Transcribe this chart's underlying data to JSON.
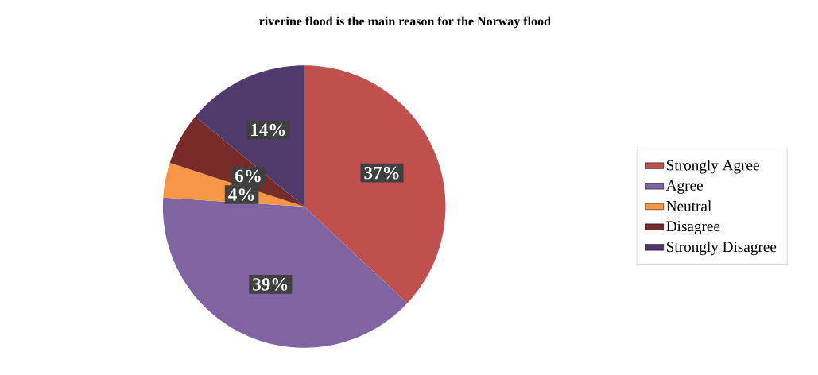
{
  "chart_data": {
    "type": "pie",
    "title": "riverine flood is the main reason for the Norway flood",
    "categories": [
      "Strongly Agree",
      "Agree",
      "Neutral",
      "Disagree",
      "Strongly Disagree"
    ],
    "values": [
      37,
      39,
      4,
      6,
      14
    ],
    "colors": [
      "#c0504d",
      "#8064a2",
      "#f79646",
      "#772c2a",
      "#4f3a6b"
    ],
    "value_labels": [
      "37%",
      "39%",
      "4%",
      "6%",
      "14%"
    ],
    "legend": "right"
  }
}
